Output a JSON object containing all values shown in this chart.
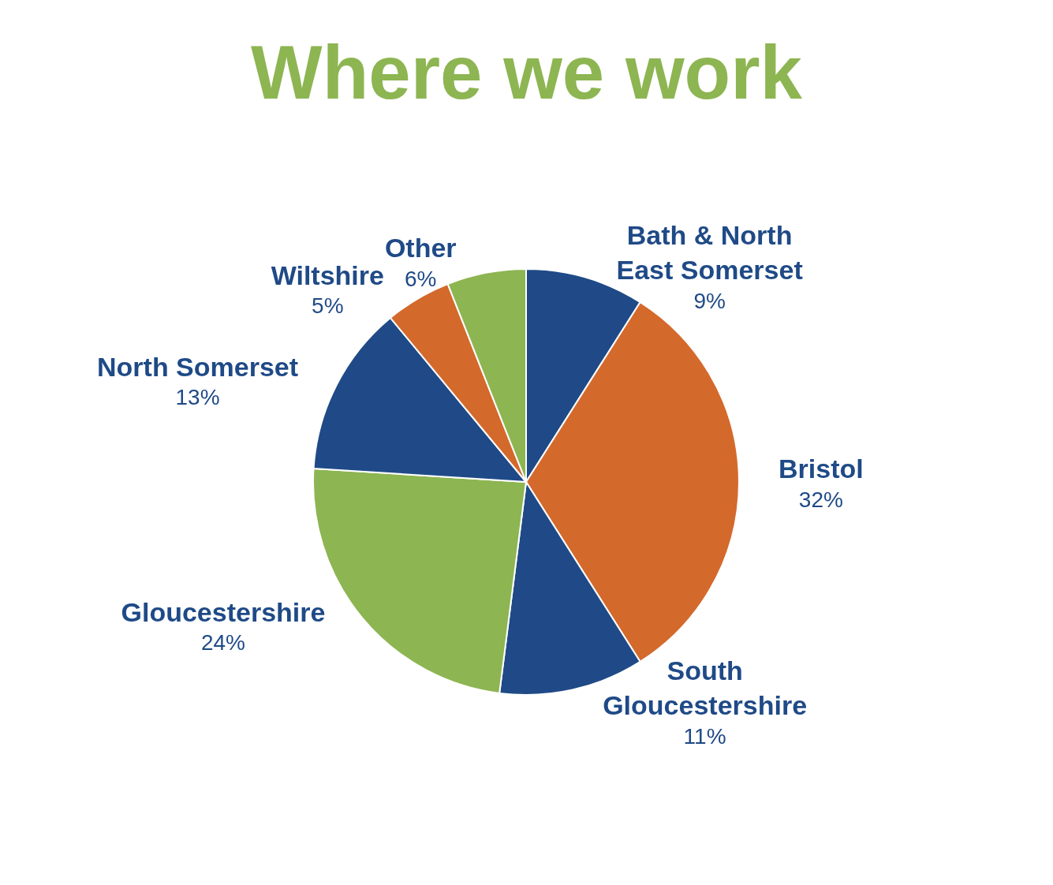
{
  "chart_data": {
    "type": "pie",
    "title": "Where we work",
    "categories": [
      "Bath & North\nEast Somerset",
      "Bristol",
      "South\nGloucestershire",
      "Gloucestershire",
      "North Somerset",
      "Wiltshire",
      "Other"
    ],
    "values": [
      9,
      32,
      11,
      24,
      13,
      5,
      6
    ],
    "value_labels": [
      "9%",
      "32%",
      "11%",
      "24%",
      "13%",
      "5%",
      "6%"
    ],
    "colors": [
      "#1f4a87",
      "#d4692c",
      "#1f4a87",
      "#8db552",
      "#1f4a87",
      "#d4692c",
      "#8db552"
    ],
    "legend": false
  }
}
